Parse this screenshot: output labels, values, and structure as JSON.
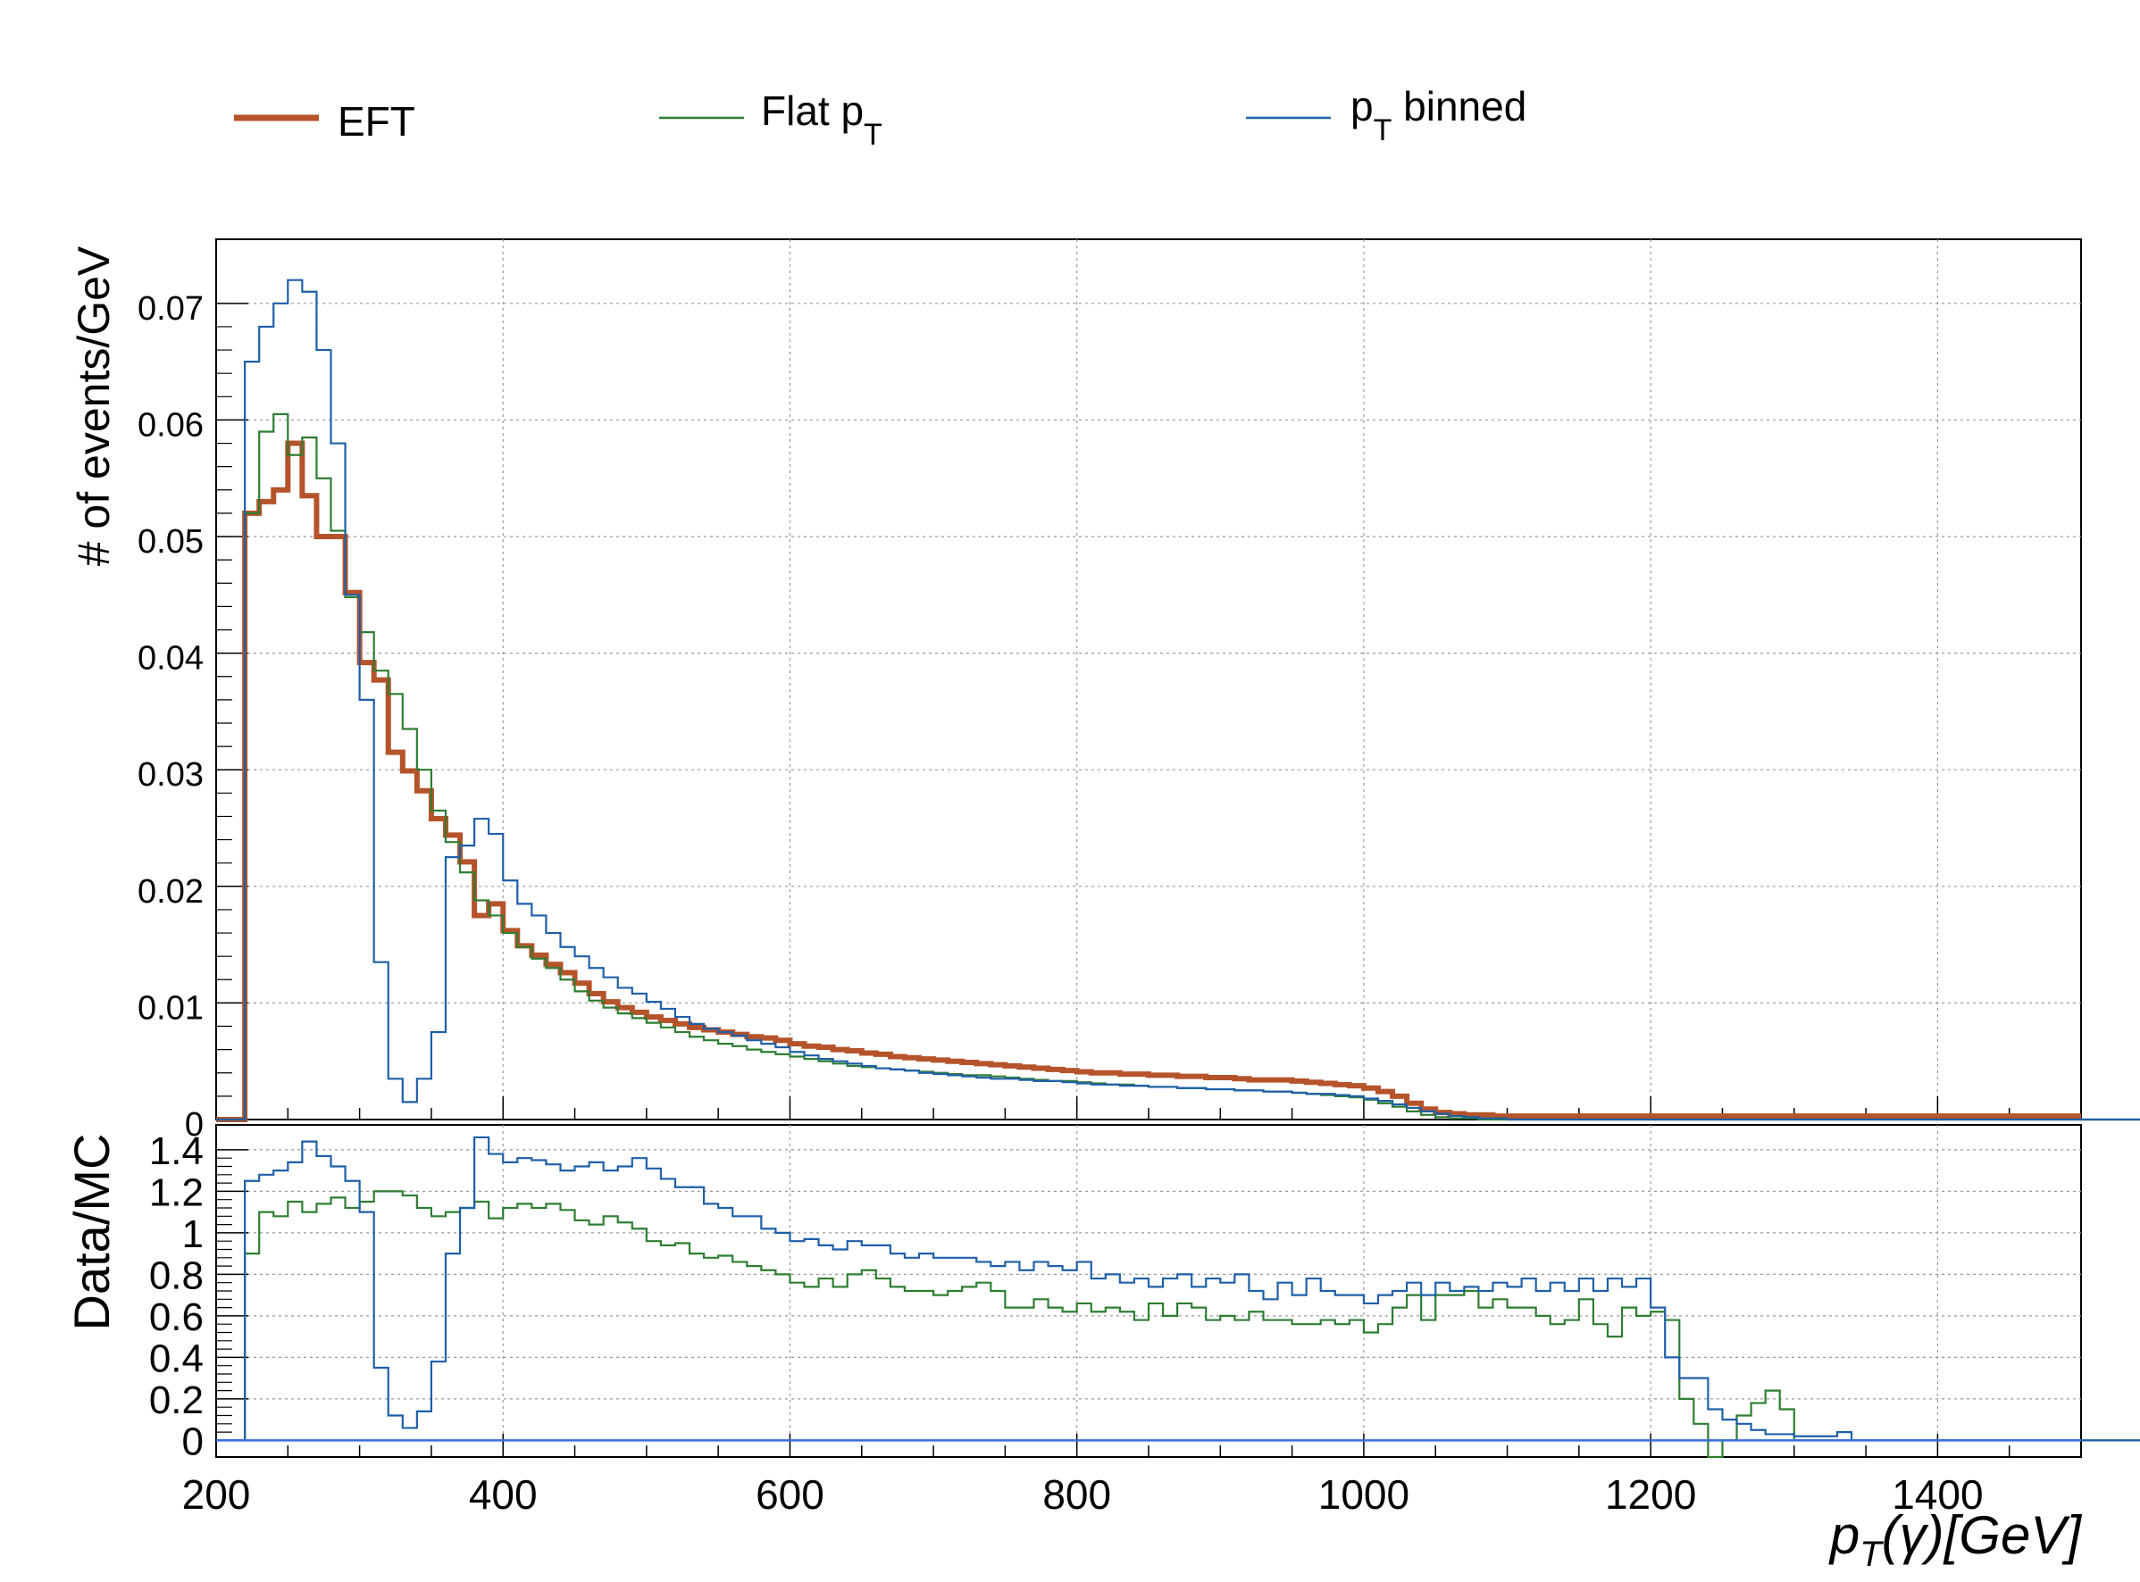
{
  "chart_data": [
    {
      "type": "line",
      "panel": "main",
      "ylabel": "# of events/GeV",
      "xlim": [
        200,
        1500
      ],
      "ylim": [
        0,
        0.0755
      ],
      "yticks": [
        0,
        0.01,
        0.02,
        0.03,
        0.04,
        0.05,
        0.06,
        0.07
      ],
      "ytick_labels": [
        "0",
        "0.01",
        "0.02",
        "0.03",
        "0.04",
        "0.05",
        "0.06",
        "0.07"
      ],
      "grid": true,
      "step": true,
      "bins": {
        "start": 200,
        "width": 10
      },
      "series": [
        {
          "name": "EFT",
          "color": "#b5532a",
          "values": [
            0,
            0,
            0.052,
            0.053,
            0.054,
            0.058,
            0.0535,
            0.05,
            0.05,
            0.0452,
            0.0392,
            0.0377,
            0.0315,
            0.0299,
            0.0282,
            0.0258,
            0.0244,
            0.0221,
            0.0175,
            0.0185,
            0.0162,
            0.0149,
            0.0141,
            0.0133,
            0.0126,
            0.0117,
            0.0108,
            0.0101,
            0.0096,
            0.0092,
            0.0088,
            0.0085,
            0.0082,
            0.0079,
            0.0077,
            0.0075,
            0.0073,
            0.0071,
            0.007,
            0.0068,
            0.0065,
            0.0063,
            0.0062,
            0.006,
            0.0059,
            0.0057,
            0.0056,
            0.0054,
            0.0053,
            0.0052,
            0.0051,
            0.005,
            0.0049,
            0.0048,
            0.0047,
            0.0046,
            0.0045,
            0.0044,
            0.0043,
            0.0042,
            0.0041,
            0.004,
            0.004,
            0.0039,
            0.0039,
            0.0038,
            0.0038,
            0.0037,
            0.0037,
            0.0036,
            0.0036,
            0.0035,
            0.0034,
            0.0034,
            0.0034,
            0.0033,
            0.0032,
            0.0031,
            0.003,
            0.0029,
            0.0027,
            0.0024,
            0.002,
            0.0014,
            0.0009,
            0.0006,
            0.0005,
            0.0004,
            0.0004,
            0.0003,
            0.0003,
            0.0003,
            0.0003,
            0.0003,
            0.0003,
            0.0003,
            0.0003,
            0.0003,
            0.0003,
            0.0003,
            0.0003,
            0.0003,
            0.0003,
            0.0003,
            0.0003,
            0.0003,
            0.0003,
            0.0003,
            0.0003,
            0.0003,
            0.0003,
            0.0003,
            0.0003,
            0.0003,
            0.0003,
            0.0003,
            0.0003,
            0.0003,
            0.0003,
            0.0003,
            0.0003,
            0.0003,
            0.0003,
            0.0003,
            0.0003,
            0.0003,
            0.0003,
            0.0003,
            0.0003,
            0.0003
          ]
        },
        {
          "name": "Flat p_T",
          "color": "#2e7d32",
          "values": [
            0,
            0,
            0.052,
            0.059,
            0.0605,
            0.057,
            0.0585,
            0.055,
            0.0505,
            0.0448,
            0.0418,
            0.0385,
            0.0365,
            0.0335,
            0.03,
            0.0265,
            0.0238,
            0.0212,
            0.0188,
            0.0175,
            0.016,
            0.0148,
            0.0138,
            0.013,
            0.012,
            0.011,
            0.0102,
            0.0096,
            0.0091,
            0.0087,
            0.0083,
            0.0079,
            0.0075,
            0.0071,
            0.0068,
            0.0065,
            0.0063,
            0.006,
            0.0058,
            0.0056,
            0.0054,
            0.0052,
            0.005,
            0.0048,
            0.0046,
            0.0045,
            0.0044,
            0.0043,
            0.0042,
            0.0041,
            0.004,
            0.0039,
            0.0038,
            0.0038,
            0.0037,
            0.0036,
            0.0035,
            0.0034,
            0.0033,
            0.0033,
            0.0032,
            0.0031,
            0.003,
            0.003,
            0.0029,
            0.0028,
            0.0028,
            0.0027,
            0.0027,
            0.0026,
            0.0026,
            0.0025,
            0.0025,
            0.0024,
            0.0024,
            0.0023,
            0.0022,
            0.0021,
            0.002,
            0.0019,
            0.0017,
            0.0014,
            0.0011,
            0.0007,
            0.0004,
            0.0002,
            0.0001,
            0.0001,
            0,
            0,
            0,
            0,
            0,
            0,
            0,
            0,
            0,
            0,
            0,
            0,
            0,
            0,
            0,
            0,
            0,
            0,
            0,
            0,
            0,
            0,
            0,
            0,
            0,
            0,
            0,
            0,
            0,
            0,
            0,
            0,
            0,
            0,
            0,
            0,
            0,
            0,
            0,
            0,
            0,
            0,
            0,
            0,
            0,
            0,
            0,
            0,
            0,
            0,
            0,
            0,
            0
          ]
        },
        {
          "name": "p_T binned",
          "color": "#1f5fa8",
          "values": [
            0,
            0,
            0.065,
            0.068,
            0.07,
            0.072,
            0.071,
            0.066,
            0.058,
            0.045,
            0.036,
            0.0135,
            0.0035,
            0.0015,
            0.0035,
            0.0075,
            0.0225,
            0.0235,
            0.0258,
            0.0245,
            0.0205,
            0.0185,
            0.0175,
            0.016,
            0.0148,
            0.014,
            0.013,
            0.0122,
            0.0113,
            0.0108,
            0.0101,
            0.0095,
            0.0088,
            0.0082,
            0.0078,
            0.0075,
            0.0072,
            0.0068,
            0.0065,
            0.0062,
            0.0058,
            0.0055,
            0.0052,
            0.005,
            0.0048,
            0.0046,
            0.0044,
            0.0043,
            0.0042,
            0.004,
            0.0039,
            0.0038,
            0.0037,
            0.0036,
            0.0035,
            0.0035,
            0.0034,
            0.0033,
            0.0033,
            0.0032,
            0.0031,
            0.003,
            0.003,
            0.0029,
            0.0029,
            0.0028,
            0.0028,
            0.0027,
            0.0027,
            0.0026,
            0.0026,
            0.0025,
            0.0025,
            0.0024,
            0.0024,
            0.0023,
            0.0022,
            0.0022,
            0.0021,
            0.002,
            0.0018,
            0.0016,
            0.0013,
            0.001,
            0.0007,
            0.0005,
            0.0003,
            0.0002,
            0.0001,
            0.0001,
            0,
            0,
            0,
            0,
            0,
            0,
            0,
            0,
            0,
            0,
            0,
            0,
            0,
            0,
            0,
            0,
            0,
            0,
            0,
            0,
            0,
            0,
            0,
            0,
            0,
            0,
            0,
            0,
            0,
            0,
            0,
            0,
            0,
            0,
            0,
            0,
            0,
            0,
            0,
            0,
            0,
            0,
            0,
            0,
            0,
            0,
            0,
            0
          ]
        }
      ]
    },
    {
      "type": "line",
      "panel": "ratio",
      "xlabel": "p_T(γ)[GeV]",
      "ylabel": "Data/MC",
      "xlim": [
        200,
        1500
      ],
      "ylim": [
        -0.08,
        1.52
      ],
      "yticks": [
        0,
        0.2,
        0.4,
        0.6,
        0.8,
        1,
        1.2,
        1.4
      ],
      "ytick_labels": [
        "0",
        "0.2",
        "0.4",
        "0.6",
        "0.8",
        "1",
        "1.2",
        "1.4"
      ],
      "xticks": [
        200,
        400,
        600,
        800,
        1000,
        1200,
        1400
      ],
      "xtick_labels": [
        "200",
        "400",
        "600",
        "800",
        "1000",
        "1200",
        "1400"
      ],
      "grid": true,
      "step": true,
      "bins": {
        "start": 200,
        "width": 10
      },
      "series": [
        {
          "name": "Flat p_T",
          "color": "#2e7d32",
          "values": [
            0,
            0,
            0.9,
            1.1,
            1.08,
            1.15,
            1.1,
            1.14,
            1.17,
            1.12,
            1.15,
            1.2,
            1.2,
            1.18,
            1.12,
            1.08,
            1.1,
            1.12,
            1.15,
            1.07,
            1.12,
            1.14,
            1.12,
            1.14,
            1.11,
            1.06,
            1.04,
            1.08,
            1.05,
            1.02,
            0.96,
            0.94,
            0.95,
            0.9,
            0.88,
            0.89,
            0.86,
            0.84,
            0.82,
            0.8,
            0.76,
            0.74,
            0.78,
            0.74,
            0.8,
            0.82,
            0.78,
            0.74,
            0.72,
            0.72,
            0.7,
            0.72,
            0.74,
            0.76,
            0.72,
            0.64,
            0.64,
            0.68,
            0.64,
            0.62,
            0.66,
            0.62,
            0.64,
            0.62,
            0.58,
            0.66,
            0.6,
            0.66,
            0.64,
            0.58,
            0.6,
            0.58,
            0.62,
            0.58,
            0.58,
            0.56,
            0.56,
            0.58,
            0.56,
            0.58,
            0.52,
            0.56,
            0.64,
            0.7,
            0.58,
            0.7,
            0.7,
            0.72,
            0.64,
            0.68,
            0.64,
            0.64,
            0.6,
            0.56,
            0.58,
            0.68,
            0.56,
            0.5,
            0.64,
            0.6,
            0.62,
            0.58,
            0.2,
            0.08,
            -0.1,
            0,
            0.12,
            0.18,
            0.24,
            0.15,
            0,
            0,
            0,
            0,
            0,
            0,
            0,
            0,
            0,
            0,
            0,
            0,
            0,
            0,
            0,
            0,
            0,
            0,
            0,
            0,
            0,
            0,
            0,
            0,
            0,
            0,
            0,
            0,
            0,
            0,
            0,
            0
          ]
        },
        {
          "name": "p_T binned",
          "color": "#1f5fa8",
          "values": [
            0,
            0,
            1.25,
            1.28,
            1.3,
            1.34,
            1.44,
            1.37,
            1.32,
            1.25,
            1.1,
            0.35,
            0.12,
            0.06,
            0.14,
            0.38,
            0.9,
            1.12,
            1.46,
            1.38,
            1.34,
            1.36,
            1.35,
            1.33,
            1.3,
            1.32,
            1.34,
            1.3,
            1.32,
            1.36,
            1.31,
            1.26,
            1.22,
            1.22,
            1.14,
            1.12,
            1.08,
            1.08,
            1.02,
            1.0,
            0.96,
            0.97,
            0.94,
            0.92,
            0.96,
            0.94,
            0.94,
            0.9,
            0.88,
            0.9,
            0.88,
            0.88,
            0.88,
            0.86,
            0.84,
            0.86,
            0.82,
            0.86,
            0.84,
            0.82,
            0.86,
            0.78,
            0.8,
            0.76,
            0.78,
            0.74,
            0.78,
            0.8,
            0.74,
            0.78,
            0.76,
            0.8,
            0.72,
            0.68,
            0.76,
            0.7,
            0.78,
            0.72,
            0.7,
            0.7,
            0.66,
            0.7,
            0.72,
            0.76,
            0.7,
            0.76,
            0.72,
            0.74,
            0.72,
            0.76,
            0.74,
            0.78,
            0.72,
            0.76,
            0.72,
            0.78,
            0.72,
            0.78,
            0.74,
            0.78,
            0.64,
            0.4,
            0.3,
            0.3,
            0.15,
            0.1,
            0.08,
            0.05,
            0.03,
            0.03,
            0.02,
            0.02,
            0.02,
            0.04,
            0,
            0,
            0,
            0,
            0,
            0,
            0,
            0,
            0,
            0,
            0,
            0,
            0,
            0,
            0,
            0,
            0,
            0,
            0,
            0,
            0,
            0,
            0,
            0,
            0,
            0
          ]
        },
        {
          "name": "EFT",
          "color": "#3a6fd8",
          "constant": 0
        }
      ]
    }
  ]
}
